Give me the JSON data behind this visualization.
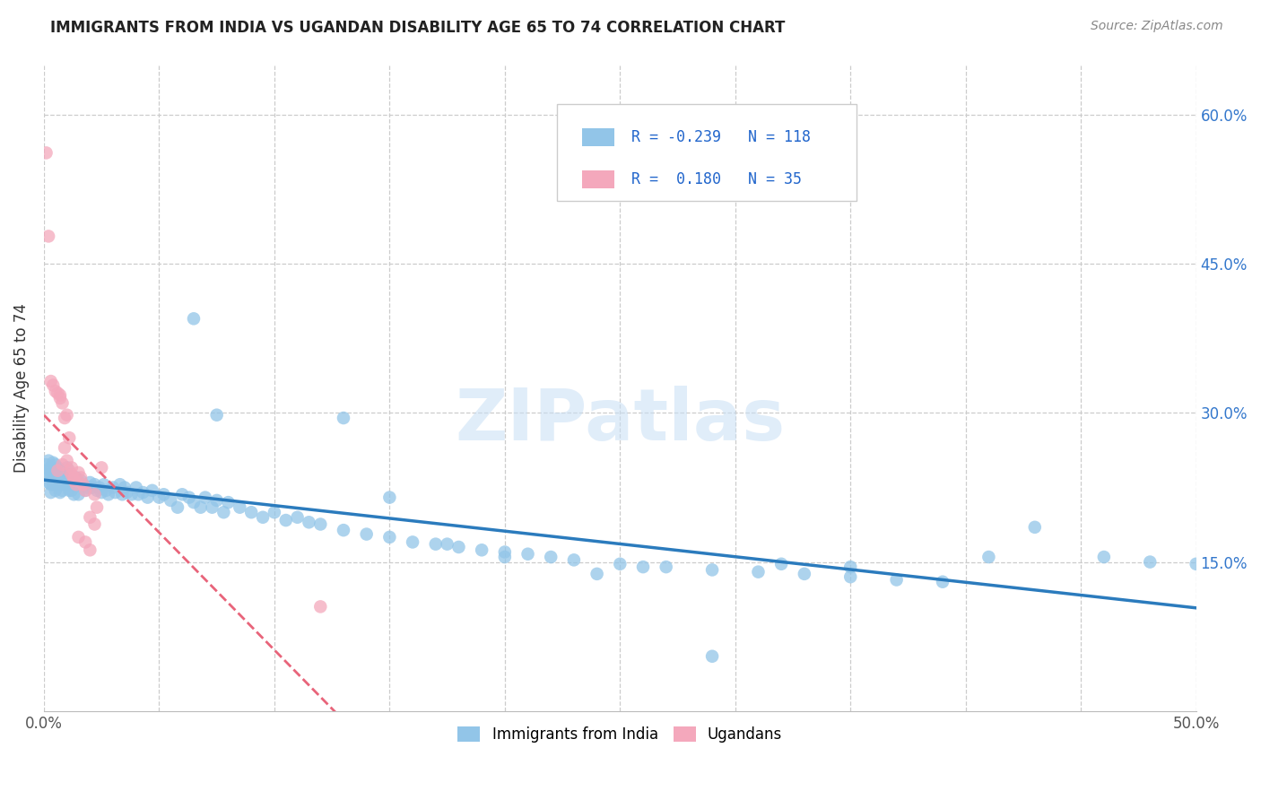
{
  "title": "IMMIGRANTS FROM INDIA VS UGANDAN DISABILITY AGE 65 TO 74 CORRELATION CHART",
  "source": "Source: ZipAtlas.com",
  "ylabel": "Disability Age 65 to 74",
  "xlim": [
    0.0,
    0.5
  ],
  "ylim": [
    0.0,
    0.65
  ],
  "x_ticks": [
    0.0,
    0.05,
    0.1,
    0.15,
    0.2,
    0.25,
    0.3,
    0.35,
    0.4,
    0.45,
    0.5
  ],
  "x_tick_labels_show": [
    "0.0%",
    "",
    "",
    "",
    "",
    "",
    "",
    "",
    "",
    "",
    "50.0%"
  ],
  "y_ticks": [
    0.15,
    0.3,
    0.45,
    0.6
  ],
  "y_tick_labels": [
    "15.0%",
    "30.0%",
    "45.0%",
    "60.0%"
  ],
  "india_color": "#92C5E8",
  "uganda_color": "#F4A8BC",
  "india_line_color": "#2B7BBD",
  "uganda_line_color": "#E8647A",
  "india_R": -0.239,
  "india_N": 118,
  "uganda_R": 0.18,
  "uganda_N": 35,
  "legend_label_india": "Immigrants from India",
  "legend_label_uganda": "Ugandans",
  "watermark": "ZIPatlas",
  "india_x": [
    0.001,
    0.001,
    0.002,
    0.002,
    0.002,
    0.003,
    0.003,
    0.003,
    0.003,
    0.004,
    0.004,
    0.004,
    0.005,
    0.005,
    0.005,
    0.006,
    0.006,
    0.006,
    0.007,
    0.007,
    0.007,
    0.008,
    0.008,
    0.008,
    0.009,
    0.009,
    0.01,
    0.01,
    0.011,
    0.011,
    0.012,
    0.012,
    0.013,
    0.013,
    0.014,
    0.015,
    0.015,
    0.016,
    0.017,
    0.018,
    0.019,
    0.02,
    0.021,
    0.022,
    0.023,
    0.024,
    0.025,
    0.026,
    0.027,
    0.028,
    0.03,
    0.031,
    0.033,
    0.034,
    0.035,
    0.036,
    0.038,
    0.04,
    0.041,
    0.043,
    0.045,
    0.047,
    0.05,
    0.052,
    0.055,
    0.058,
    0.06,
    0.063,
    0.065,
    0.068,
    0.07,
    0.073,
    0.075,
    0.078,
    0.08,
    0.085,
    0.09,
    0.095,
    0.1,
    0.105,
    0.11,
    0.115,
    0.12,
    0.13,
    0.14,
    0.15,
    0.16,
    0.17,
    0.18,
    0.19,
    0.2,
    0.21,
    0.22,
    0.23,
    0.25,
    0.27,
    0.29,
    0.31,
    0.33,
    0.35,
    0.37,
    0.39,
    0.065,
    0.075,
    0.13,
    0.15,
    0.29,
    0.43,
    0.46,
    0.48,
    0.5,
    0.41,
    0.35,
    0.32,
    0.26,
    0.24,
    0.2,
    0.175
  ],
  "india_y": [
    0.248,
    0.238,
    0.252,
    0.242,
    0.23,
    0.245,
    0.238,
    0.228,
    0.22,
    0.25,
    0.24,
    0.228,
    0.248,
    0.235,
    0.222,
    0.245,
    0.238,
    0.228,
    0.242,
    0.232,
    0.22,
    0.24,
    0.232,
    0.222,
    0.238,
    0.228,
    0.245,
    0.228,
    0.238,
    0.222,
    0.235,
    0.222,
    0.232,
    0.218,
    0.235,
    0.228,
    0.218,
    0.232,
    0.228,
    0.222,
    0.225,
    0.23,
    0.225,
    0.228,
    0.222,
    0.225,
    0.22,
    0.228,
    0.222,
    0.218,
    0.225,
    0.22,
    0.228,
    0.218,
    0.225,
    0.22,
    0.218,
    0.225,
    0.218,
    0.22,
    0.215,
    0.222,
    0.215,
    0.218,
    0.212,
    0.205,
    0.218,
    0.215,
    0.21,
    0.205,
    0.215,
    0.205,
    0.212,
    0.2,
    0.21,
    0.205,
    0.2,
    0.195,
    0.2,
    0.192,
    0.195,
    0.19,
    0.188,
    0.182,
    0.178,
    0.175,
    0.17,
    0.168,
    0.165,
    0.162,
    0.16,
    0.158,
    0.155,
    0.152,
    0.148,
    0.145,
    0.142,
    0.14,
    0.138,
    0.135,
    0.132,
    0.13,
    0.395,
    0.298,
    0.295,
    0.215,
    0.055,
    0.185,
    0.155,
    0.15,
    0.148,
    0.155,
    0.145,
    0.148,
    0.145,
    0.138,
    0.155,
    0.168
  ],
  "uganda_x": [
    0.001,
    0.002,
    0.003,
    0.004,
    0.005,
    0.006,
    0.007,
    0.008,
    0.009,
    0.01,
    0.011,
    0.012,
    0.013,
    0.014,
    0.015,
    0.016,
    0.017,
    0.018,
    0.02,
    0.022,
    0.023,
    0.025,
    0.006,
    0.007,
    0.008,
    0.009,
    0.01,
    0.011,
    0.012,
    0.013,
    0.015,
    0.018,
    0.02,
    0.022,
    0.12
  ],
  "uganda_y": [
    0.562,
    0.478,
    0.332,
    0.328,
    0.322,
    0.32,
    0.315,
    0.31,
    0.265,
    0.298,
    0.242,
    0.238,
    0.232,
    0.228,
    0.24,
    0.235,
    0.228,
    0.222,
    0.195,
    0.218,
    0.205,
    0.245,
    0.242,
    0.318,
    0.248,
    0.295,
    0.252,
    0.275,
    0.245,
    0.235,
    0.175,
    0.17,
    0.162,
    0.188,
    0.105
  ]
}
